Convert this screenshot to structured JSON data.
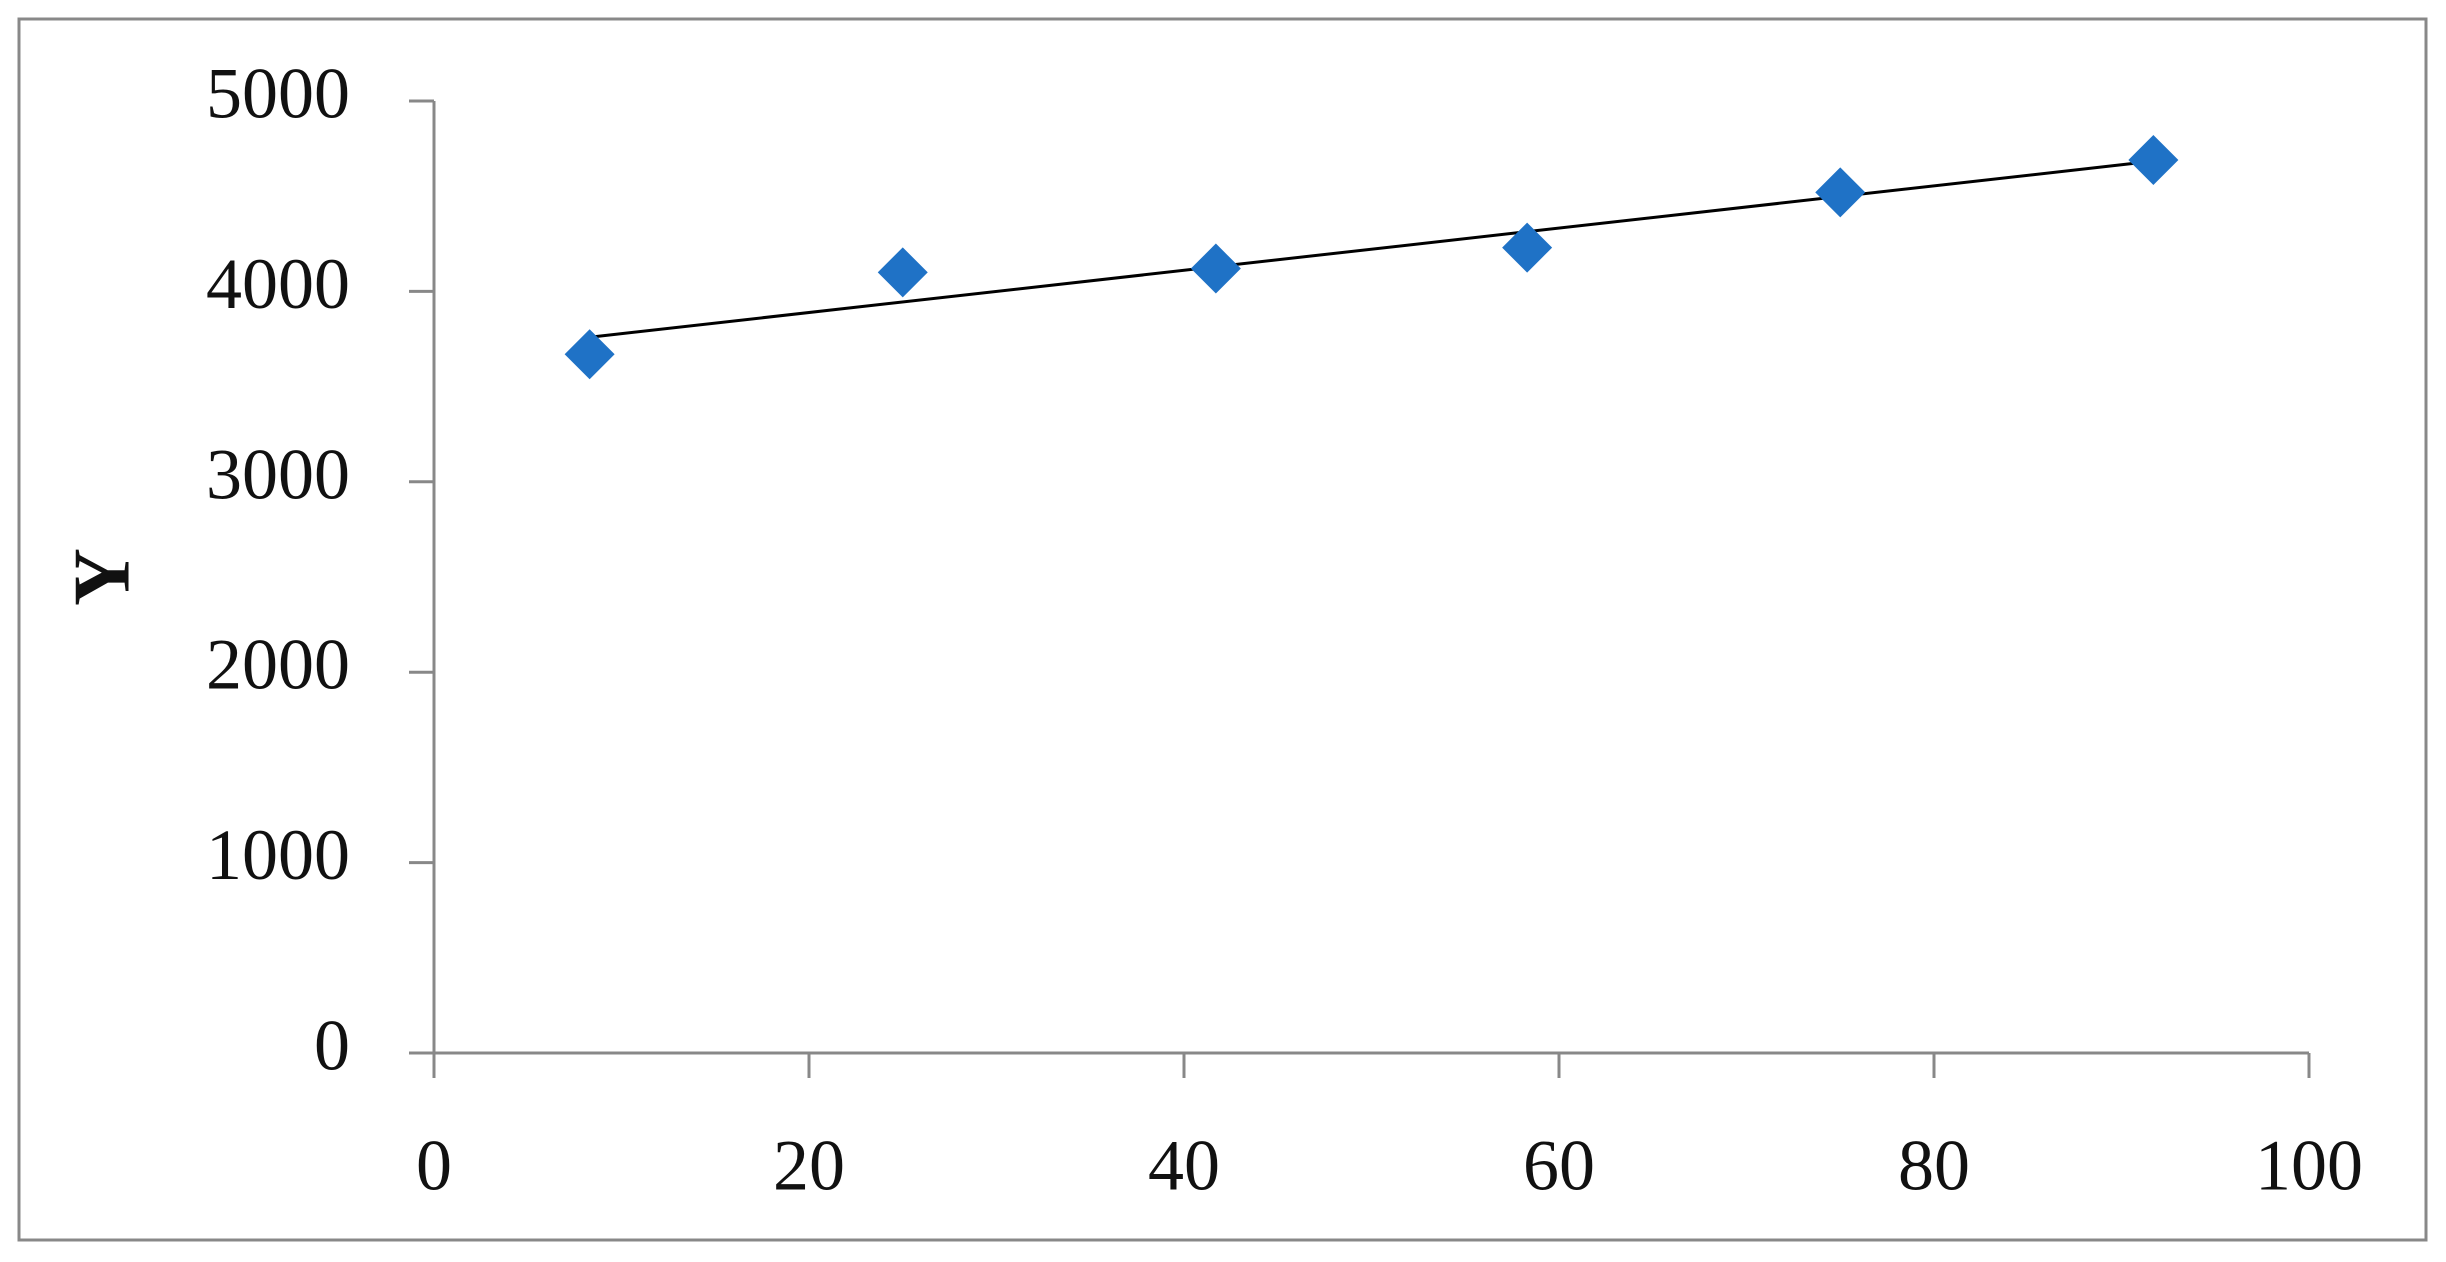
{
  "chart_data": {
    "type": "scatter",
    "ylabel": "Y",
    "x": [
      8.3,
      25,
      41.7,
      58.3,
      75,
      91.7
    ],
    "series": [
      {
        "color": "#1f72c6",
        "values": [
          3670,
          4100,
          4120,
          4230,
          4520,
          4690
        ]
      }
    ],
    "trendline": "linear",
    "trendline_color": "#000000",
    "xlim": [
      0,
      100
    ],
    "xticks": [
      0,
      20,
      40,
      60,
      80,
      100
    ],
    "ylim": [
      0,
      5000
    ],
    "yticks": [
      0,
      1000,
      2000,
      3000,
      4000,
      5000
    ],
    "grid": false
  }
}
